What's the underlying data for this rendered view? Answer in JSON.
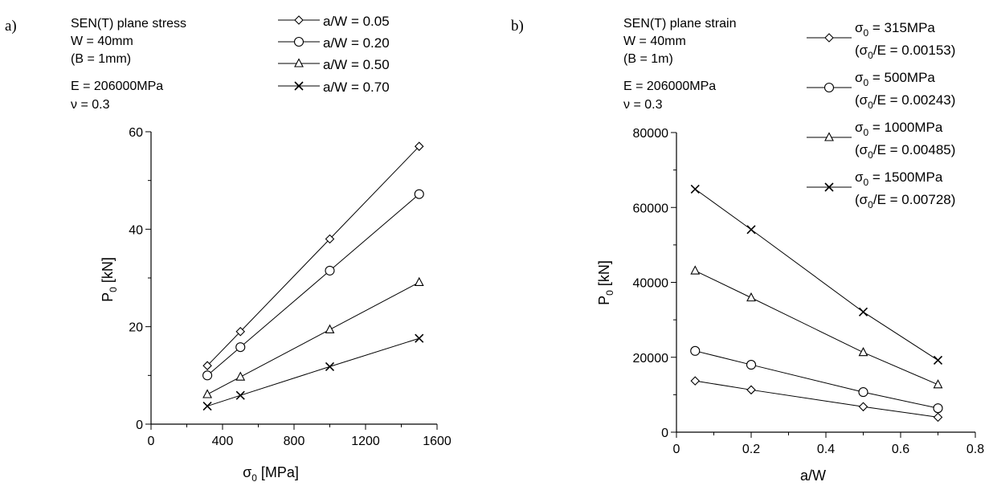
{
  "chart_data": [
    {
      "type": "line",
      "panel_label": "a)",
      "info_lines": [
        "SEN(T) plane stress",
        "W = 40mm",
        "(B = 1mm)",
        "E = 206000MPa",
        "ν = 0.3"
      ],
      "xlabel_symbol": "σ",
      "xlabel_sub": "0",
      "xlabel_rest": " [MPa]",
      "ylabel_symbol": "P",
      "ylabel_sub": "0",
      "ylabel_rest": " [kN]",
      "xlim": [
        0,
        1600
      ],
      "ylim": [
        0,
        60
      ],
      "x_ticks": [
        "0",
        "400",
        "800",
        "1200",
        "1600"
      ],
      "y_ticks": [
        "0",
        "20",
        "40",
        "60"
      ],
      "grid": false,
      "legend_position": "top",
      "series": [
        {
          "name": "a/W = 0.05",
          "marker": "diamond",
          "x": [
            315,
            500,
            1000,
            1500
          ],
          "y": [
            12.0,
            19.0,
            38.0,
            57.0
          ]
        },
        {
          "name": "a/W = 0.20",
          "marker": "circle",
          "x": [
            315,
            500,
            1000,
            1500
          ],
          "y": [
            10.0,
            15.8,
            31.5,
            47.2
          ]
        },
        {
          "name": "a/W = 0.50",
          "marker": "triangle",
          "x": [
            315,
            500,
            1000,
            1500
          ],
          "y": [
            6.1,
            9.7,
            19.4,
            29.1
          ]
        },
        {
          "name": "a/W = 0.70",
          "marker": "x",
          "x": [
            315,
            500,
            1000,
            1500
          ],
          "y": [
            3.7,
            5.9,
            11.8,
            17.6
          ]
        }
      ]
    },
    {
      "type": "line",
      "panel_label": "b)",
      "info_lines": [
        "SEN(T) plane strain",
        "W = 40mm",
        "(B = 1m)",
        "E = 206000MPa",
        "ν = 0.3"
      ],
      "xlabel_symbol": "a/W",
      "xlabel_sub": "",
      "xlabel_rest": "",
      "ylabel_symbol": "P",
      "ylabel_sub": "0",
      "ylabel_rest": " [kN]",
      "xlim": [
        0,
        0.8
      ],
      "ylim": [
        0,
        80000
      ],
      "x_ticks": [
        "0",
        "0.2",
        "0.4",
        "0.6",
        "0.8"
      ],
      "y_ticks": [
        "0",
        "20000",
        "40000",
        "60000",
        "80000"
      ],
      "grid": false,
      "legend_position": "top-right",
      "series": [
        {
          "line1": [
            "σ",
            "0",
            " = 315MPa"
          ],
          "line2": [
            "(σ",
            "0",
            "/E = 0.00153)"
          ],
          "marker": "diamond",
          "x": [
            0.05,
            0.2,
            0.5,
            0.7
          ],
          "y": [
            13700,
            11300,
            6800,
            4000
          ]
        },
        {
          "line1": [
            "σ",
            "0",
            " = 500MPa"
          ],
          "line2": [
            "(σ",
            "0",
            "/E = 0.00243)"
          ],
          "marker": "circle",
          "x": [
            0.05,
            0.2,
            0.5,
            0.7
          ],
          "y": [
            21700,
            18000,
            10700,
            6400
          ]
        },
        {
          "line1": [
            "σ",
            "0",
            " = 1000MPa"
          ],
          "line2": [
            "(σ",
            "0",
            "/E = 0.00485)"
          ],
          "marker": "triangle",
          "x": [
            0.05,
            0.2,
            0.5,
            0.7
          ],
          "y": [
            43100,
            35900,
            21300,
            12700
          ]
        },
        {
          "line1": [
            "σ",
            "0",
            " = 1500MPa"
          ],
          "line2": [
            "(σ",
            "0",
            "/E = 0.00728)"
          ],
          "marker": "x",
          "x": [
            0.05,
            0.2,
            0.5,
            0.7
          ],
          "y": [
            64900,
            54100,
            32100,
            19200
          ]
        }
      ]
    }
  ]
}
